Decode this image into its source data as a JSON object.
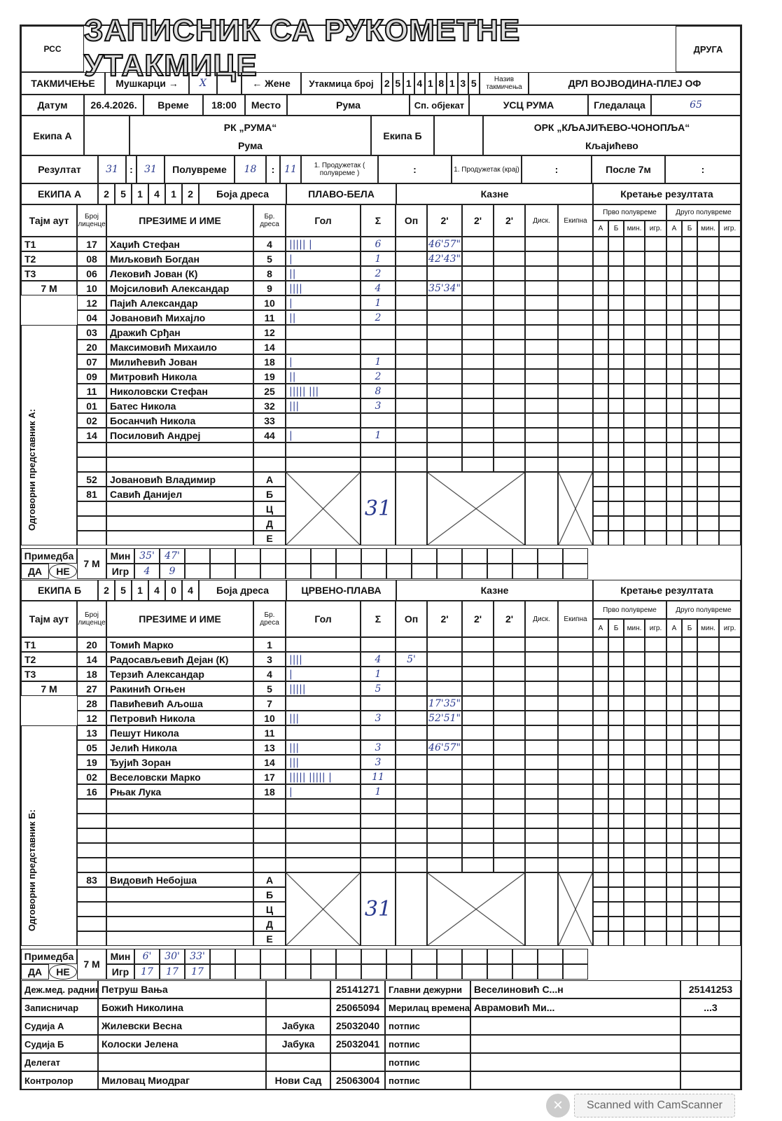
{
  "header": {
    "title": "ЗАПИСНИК СА РУКОМЕТНЕ УТАКМИЦЕ",
    "left_logo": "РСС",
    "right_logo": "ДРУГА"
  },
  "competition": {
    "label": "ТАКМИЧЕЊЕ",
    "men": "Мушкарци →",
    "men_mark": "X",
    "women": "← Жене",
    "match_no_label": "Утакмица број",
    "match_no": [
      "2",
      "5",
      "1",
      "4",
      "1",
      "8",
      "1",
      "3",
      "5"
    ],
    "name_label": "Назив такмичења",
    "name": "ДРЛ ВОЈВОДИНА-ПЛЕЈ ОФ"
  },
  "info": {
    "date_label": "Датум",
    "date": "26.4.2026.",
    "time_label": "Време",
    "time": "18:00",
    "place_label": "Место",
    "place": "Рума",
    "venue_label": "Сп. објекат",
    "venue": "УСЦ РУМА",
    "spectators_label": "Гледалаца",
    "spectators": "65"
  },
  "teams": {
    "a_label": "Екипа А",
    "a_name": "РК „РУМА“",
    "a_city": "Рума",
    "b_label": "Екипа Б",
    "b_name": "ОРК „КЉАЈИЋЕВО-ЧОНОПЉА“",
    "b_city": "Кљајићево"
  },
  "result": {
    "label": "Резултат",
    "a": "31",
    "b": "31",
    "sep": ":",
    "half_label": "Полувреме",
    "half_a": "18",
    "half_b": "11",
    "ot1_half_label": "1. Продужетак ( полувреме )",
    "ot1_end_label": "1. Продужетак (крај)",
    "after7m_label": "После 7м"
  },
  "table_headers": {
    "timeout": "Тајм аут",
    "license": "Број лиценце",
    "name": "ПРЕЗИМЕ И ИМЕ",
    "jersey": "Бр. дреса",
    "goals": "Гол",
    "sum": "Σ",
    "warn": "Оп",
    "p1": "2'",
    "p2": "2'",
    "p3": "2'",
    "disq": "Диск.",
    "team": "Екипна",
    "jersey_color": "Боја дреса",
    "penalties": "Казне",
    "progress": "Кретање резултата",
    "first_half": "Прво полувреме",
    "second_half": "Друго полувреме",
    "pa": "А",
    "pb": "Б",
    "min": "мин.",
    "pl": "игр."
  },
  "team_a": {
    "label": "ЕКИПА А",
    "code": [
      "2",
      "5",
      "1",
      "4",
      "1",
      "2"
    ],
    "color": "ПЛАВО-БЕЛА",
    "rep_label": "Одговорни представник А:",
    "timeouts": [
      "Т1",
      "Т2",
      "Т3"
    ],
    "seven_m": "7 М",
    "total": "31",
    "players": [
      {
        "lic": "17",
        "name": "Хаџић Стефан",
        "no": "4",
        "goals": "||||| |",
        "sum": "6",
        "warn": "",
        "p": [
          "46'57\"",
          "",
          ""
        ]
      },
      {
        "lic": "08",
        "name": "Миљковић Богдан",
        "no": "5",
        "goals": "|",
        "sum": "1",
        "warn": "",
        "p": [
          "42'43\"",
          "",
          ""
        ]
      },
      {
        "lic": "06",
        "name": "Лековић Јован (К)",
        "no": "8",
        "goals": "||",
        "sum": "2",
        "warn": "",
        "p": [
          "",
          "",
          ""
        ]
      },
      {
        "lic": "10",
        "name": "Мојсиловић Александар",
        "no": "9",
        "goals": "||||",
        "sum": "4",
        "warn": "",
        "p": [
          "35'34\"",
          "",
          ""
        ]
      },
      {
        "lic": "12",
        "name": "Пајић Александар",
        "no": "10",
        "goals": "|",
        "sum": "1",
        "warn": "",
        "p": [
          "",
          "",
          ""
        ]
      },
      {
        "lic": "04",
        "name": "Јовановић Михајло",
        "no": "11",
        "goals": "||",
        "sum": "2",
        "warn": "",
        "p": [
          "",
          "",
          ""
        ]
      },
      {
        "lic": "03",
        "name": "Дражић Срђан",
        "no": "12",
        "goals": "",
        "sum": "",
        "warn": "",
        "p": [
          "",
          "",
          ""
        ]
      },
      {
        "lic": "20",
        "name": "Максимовић Михаило",
        "no": "14",
        "goals": "",
        "sum": "",
        "warn": "",
        "p": [
          "",
          "",
          ""
        ]
      },
      {
        "lic": "07",
        "name": "Милићевић Јован",
        "no": "18",
        "goals": "|",
        "sum": "1",
        "warn": "",
        "p": [
          "",
          "",
          ""
        ]
      },
      {
        "lic": "09",
        "name": "Митровић Никола",
        "no": "19",
        "goals": "||",
        "sum": "2",
        "warn": "",
        "p": [
          "",
          "",
          ""
        ]
      },
      {
        "lic": "11",
        "name": "Николовски Стефан",
        "no": "25",
        "goals": "||||| |||",
        "sum": "8",
        "warn": "",
        "p": [
          "",
          "",
          ""
        ]
      },
      {
        "lic": "01",
        "name": "Батес Никола",
        "no": "32",
        "goals": "|||",
        "sum": "3",
        "warn": "",
        "p": [
          "",
          "",
          ""
        ]
      },
      {
        "lic": "02",
        "name": "Босанчић Никола",
        "no": "33",
        "goals": "",
        "sum": "",
        "warn": "",
        "p": [
          "",
          "",
          ""
        ]
      },
      {
        "lic": "14",
        "name": "Посиловић Андреј",
        "no": "44",
        "goals": "|",
        "sum": "1",
        "warn": "",
        "p": [
          "",
          "",
          ""
        ]
      },
      {
        "lic": "",
        "name": "",
        "no": "",
        "goals": "",
        "sum": "",
        "warn": "",
        "p": [
          "",
          "",
          ""
        ]
      },
      {
        "lic": "",
        "name": "",
        "no": "",
        "goals": "",
        "sum": "",
        "warn": "",
        "p": [
          "",
          "",
          ""
        ]
      }
    ],
    "officials": [
      {
        "lic": "52",
        "name": "Јовановић Владимир",
        "role": "А"
      },
      {
        "lic": "81",
        "name": "Савић Данијел",
        "role": "Б"
      },
      {
        "lic": "",
        "name": "",
        "role": "Ц"
      },
      {
        "lic": "",
        "name": "",
        "role": "Д"
      },
      {
        "lic": "",
        "name": "",
        "role": "Е"
      }
    ],
    "remark": {
      "label": "Примедба",
      "yes": "ДА",
      "no": "НЕ",
      "seven_m": "7 М",
      "min_label": "Мин",
      "pl_label": "Игр",
      "min": [
        "35'",
        "47'"
      ],
      "pl": [
        "4",
        "9"
      ]
    }
  },
  "team_b": {
    "label": "ЕКИПА Б",
    "code": [
      "2",
      "5",
      "1",
      "4",
      "0",
      "4"
    ],
    "color": "ЦРВЕНО-ПЛАВА",
    "rep_label": "Одговорни представник Б:",
    "timeouts": [
      "Т1",
      "Т2",
      "Т3"
    ],
    "seven_m": "7 М",
    "total": "31",
    "players": [
      {
        "lic": "20",
        "name": "Томић Марко",
        "no": "1",
        "goals": "",
        "sum": "",
        "warn": "",
        "p": [
          "",
          "",
          ""
        ]
      },
      {
        "lic": "14",
        "name": "Радосављевић Дејан (К)",
        "no": "3",
        "goals": "||||",
        "sum": "4",
        "warn": "5'",
        "p": [
          "",
          "",
          ""
        ]
      },
      {
        "lic": "18",
        "name": "Терзић Александар",
        "no": "4",
        "goals": "|",
        "sum": "1",
        "warn": "",
        "p": [
          "",
          "",
          ""
        ]
      },
      {
        "lic": "27",
        "name": "Ракинић Огњен",
        "no": "5",
        "goals": "|||||",
        "sum": "5",
        "warn": "",
        "p": [
          "",
          "",
          ""
        ]
      },
      {
        "lic": "28",
        "name": "Павићевић Аљоша",
        "no": "7",
        "goals": "",
        "sum": "",
        "warn": "",
        "p": [
          "17'35\"",
          "",
          ""
        ]
      },
      {
        "lic": "12",
        "name": "Петровић Никола",
        "no": "10",
        "goals": "|||",
        "sum": "3",
        "warn": "",
        "p": [
          "52'51\"",
          "",
          ""
        ]
      },
      {
        "lic": "13",
        "name": "Пешут Никола",
        "no": "11",
        "goals": "",
        "sum": "",
        "warn": "",
        "p": [
          "",
          "",
          ""
        ]
      },
      {
        "lic": "05",
        "name": "Јелић Никола",
        "no": "13",
        "goals": "|||",
        "sum": "3",
        "warn": "",
        "p": [
          "46'57\"",
          "",
          ""
        ]
      },
      {
        "lic": "19",
        "name": "Ђујић Зоран",
        "no": "14",
        "goals": "|||",
        "sum": "3",
        "warn": "",
        "p": [
          "",
          "",
          ""
        ]
      },
      {
        "lic": "02",
        "name": "Веселовски Марко",
        "no": "17",
        "goals": "||||| ||||| |",
        "sum": "11",
        "warn": "",
        "p": [
          "",
          "",
          ""
        ]
      },
      {
        "lic": "16",
        "name": "Рњак Лука",
        "no": "18",
        "goals": "|",
        "sum": "1",
        "warn": "",
        "p": [
          "",
          "",
          ""
        ]
      },
      {
        "lic": "",
        "name": "",
        "no": "",
        "goals": "",
        "sum": "",
        "warn": "",
        "p": [
          "",
          "",
          ""
        ]
      },
      {
        "lic": "",
        "name": "",
        "no": "",
        "goals": "",
        "sum": "",
        "warn": "",
        "p": [
          "",
          "",
          ""
        ]
      },
      {
        "lic": "",
        "name": "",
        "no": "",
        "goals": "",
        "sum": "",
        "warn": "",
        "p": [
          "",
          "",
          ""
        ]
      },
      {
        "lic": "",
        "name": "",
        "no": "",
        "goals": "",
        "sum": "",
        "warn": "",
        "p": [
          "",
          "",
          ""
        ]
      },
      {
        "lic": "",
        "name": "",
        "no": "",
        "goals": "",
        "sum": "",
        "warn": "",
        "p": [
          "",
          "",
          ""
        ]
      }
    ],
    "officials": [
      {
        "lic": "83",
        "name": "Видовић Небојша",
        "role": "А"
      },
      {
        "lic": "",
        "name": "",
        "role": "Б"
      },
      {
        "lic": "",
        "name": "",
        "role": "Ц"
      },
      {
        "lic": "",
        "name": "",
        "role": "Д"
      },
      {
        "lic": "",
        "name": "",
        "role": "Е"
      }
    ],
    "remark": {
      "label": "Примедба",
      "yes": "ДА",
      "no": "НЕ",
      "seven_m": "7 М",
      "min_label": "Мин",
      "pl_label": "Игр",
      "min": [
        "6'",
        "30'",
        "33'"
      ],
      "pl": [
        "17",
        "17",
        "17"
      ]
    }
  },
  "staff": [
    {
      "role": "Деж.мед. радник",
      "name": "Петруш Вања",
      "city": "",
      "lic": "25141271",
      "role2": "Главни дежурни",
      "name2": "Веселиновић С...н",
      "lic2": "25141253"
    },
    {
      "role": "Записничар",
      "name": "Божић Николина",
      "city": "",
      "lic": "25065094",
      "role2": "Мерилац времена",
      "name2": "Аврамовић Ми...",
      "lic2": "...3"
    },
    {
      "role": "Судија А",
      "name": "Жилевски Весна",
      "city": "Јабука",
      "lic": "25032040",
      "role2": "потпис",
      "name2": "",
      "lic2": ""
    },
    {
      "role": "Судија Б",
      "name": "Колоски Јелена",
      "city": "Јабука",
      "lic": "25032041",
      "role2": "потпис",
      "name2": "",
      "lic2": ""
    },
    {
      "role": "Делегат",
      "name": "",
      "city": "",
      "lic": "",
      "role2": "потпис",
      "name2": "",
      "lic2": ""
    },
    {
      "role": "Контролор",
      "name": "Миловац Миодраг",
      "city": "Нови Сад",
      "lic": "25063004",
      "role2": "потпис",
      "name2": "",
      "lic2": ""
    }
  ],
  "overlay": {
    "text": "Scanned with CamScanner",
    "close": "×"
  }
}
